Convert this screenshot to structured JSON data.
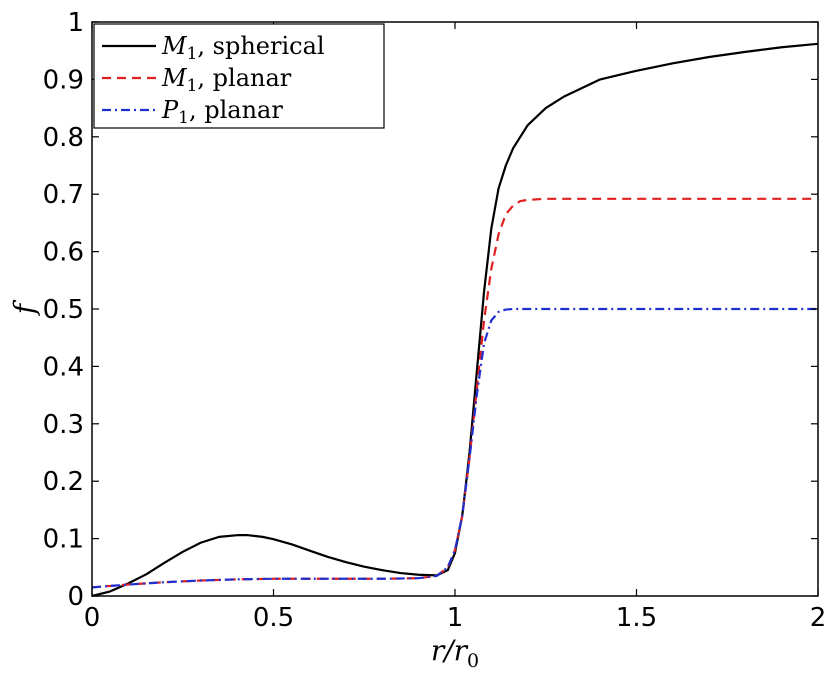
{
  "chart_data": {
    "type": "line",
    "title": "",
    "xlabel": "r/r",
    "xlabel_sub": "0",
    "ylabel": "f",
    "xlim": [
      0,
      2
    ],
    "ylim": [
      0,
      1
    ],
    "xticks": [
      0,
      0.5,
      1,
      1.5,
      2
    ],
    "xtick_labels": [
      "0",
      "0.5",
      "1",
      "1.5",
      "2"
    ],
    "yticks": [
      0,
      0.1,
      0.2,
      0.3,
      0.4,
      0.5,
      0.6,
      0.7,
      0.8,
      0.9,
      1
    ],
    "ytick_labels": [
      "0",
      "0.1",
      "0.2",
      "0.3",
      "0.4",
      "0.5",
      "0.6",
      "0.7",
      "0.8",
      "0.9",
      "1"
    ],
    "grid": false,
    "legend_position": "top-left",
    "series": [
      {
        "name": "M1, spherical",
        "legend_symbol": "M",
        "legend_sub": "1",
        "legend_rest": ", spherical",
        "color": "#000000",
        "dash": "solid",
        "x": [
          0,
          0.05,
          0.1,
          0.15,
          0.2,
          0.25,
          0.3,
          0.35,
          0.4,
          0.43,
          0.47,
          0.5,
          0.55,
          0.6,
          0.65,
          0.7,
          0.75,
          0.8,
          0.85,
          0.9,
          0.95,
          0.98,
          1.0,
          1.02,
          1.04,
          1.06,
          1.08,
          1.1,
          1.12,
          1.14,
          1.16,
          1.18,
          1.2,
          1.25,
          1.3,
          1.35,
          1.4,
          1.5,
          1.6,
          1.7,
          1.8,
          1.9,
          2.0
        ],
        "y": [
          0.0,
          0.008,
          0.022,
          0.038,
          0.058,
          0.077,
          0.093,
          0.103,
          0.106,
          0.106,
          0.103,
          0.099,
          0.09,
          0.079,
          0.068,
          0.059,
          0.051,
          0.045,
          0.04,
          0.037,
          0.036,
          0.045,
          0.075,
          0.14,
          0.25,
          0.39,
          0.53,
          0.64,
          0.71,
          0.75,
          0.78,
          0.8,
          0.82,
          0.85,
          0.87,
          0.885,
          0.9,
          0.915,
          0.928,
          0.939,
          0.948,
          0.956,
          0.962
        ]
      },
      {
        "name": "M1, planar",
        "legend_symbol": "M",
        "legend_sub": "1",
        "legend_rest": ", planar",
        "color": "#e02020",
        "dash": "9,6",
        "x": [
          0,
          0.1,
          0.2,
          0.3,
          0.4,
          0.5,
          0.6,
          0.7,
          0.8,
          0.9,
          0.95,
          0.98,
          1.0,
          1.02,
          1.04,
          1.06,
          1.08,
          1.1,
          1.12,
          1.14,
          1.16,
          1.18,
          1.2,
          1.25,
          1.3,
          1.5,
          1.7,
          2.0
        ],
        "y": [
          0.015,
          0.02,
          0.024,
          0.027,
          0.029,
          0.03,
          0.03,
          0.03,
          0.03,
          0.031,
          0.035,
          0.05,
          0.08,
          0.14,
          0.24,
          0.36,
          0.48,
          0.57,
          0.63,
          0.665,
          0.68,
          0.688,
          0.69,
          0.692,
          0.692,
          0.692,
          0.692,
          0.692
        ]
      },
      {
        "name": "P1, planar",
        "legend_symbol": "P",
        "legend_sub": "1",
        "legend_rest": ", planar",
        "color": "#2030d0",
        "dash": "9,4,2,4",
        "x": [
          0,
          0.1,
          0.2,
          0.3,
          0.4,
          0.5,
          0.6,
          0.7,
          0.8,
          0.9,
          0.95,
          0.98,
          1.0,
          1.02,
          1.04,
          1.06,
          1.08,
          1.1,
          1.12,
          1.14,
          1.16,
          1.2,
          1.3,
          1.5,
          1.7,
          2.0
        ],
        "y": [
          0.015,
          0.02,
          0.024,
          0.027,
          0.029,
          0.03,
          0.03,
          0.03,
          0.03,
          0.031,
          0.035,
          0.05,
          0.08,
          0.14,
          0.24,
          0.35,
          0.44,
          0.48,
          0.495,
          0.499,
          0.5,
          0.5,
          0.5,
          0.5,
          0.5,
          0.5
        ]
      }
    ]
  }
}
